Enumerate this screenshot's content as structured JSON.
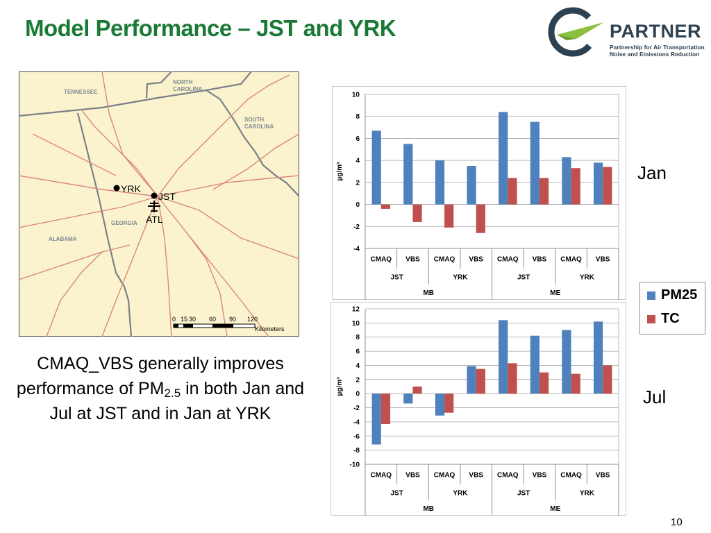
{
  "slide": {
    "title": "Model Performance – JST and YRK",
    "page_number": "10"
  },
  "logo": {
    "name": "PARTNER",
    "tagline_1": "Partnership for Air Transportation",
    "tagline_2": "Noise and Emissions Reduction"
  },
  "map": {
    "labels": {
      "tennessee": "TENNESSEE",
      "north_carolina_1": "NORTH",
      "north_carolina_2": "CAROLINA",
      "south_carolina_1": "SOUTH",
      "south_carolina_2": "CAROLINA",
      "georgia": "GEORGIA",
      "alabama": "ALABAMA",
      "yrk": "YRK",
      "jst": "JST",
      "atl": "ATL"
    },
    "scale": {
      "ticks": [
        "0",
        "15",
        "30",
        "60",
        "90",
        "120"
      ],
      "unit": "Kilometers"
    }
  },
  "summary": {
    "text_before": "CMAQ_VBS generally improves performance of PM",
    "subscript": "2.5",
    "text_after": " in both Jan and Jul at JST and in Jan at YRK"
  },
  "side_labels": {
    "jan": "Jan",
    "jul": "Jul"
  },
  "legend": [
    {
      "name": "PM25",
      "color": "#4f81bd"
    },
    {
      "name": "TC",
      "color": "#c0504d"
    }
  ],
  "colors": {
    "pm25": "#4f81bd",
    "tc": "#c0504d",
    "title": "#1a7a35"
  },
  "chart_data": [
    {
      "type": "bar",
      "panel": "Jan",
      "ylabel": "µg/m³",
      "ylim": [
        -4,
        10
      ],
      "yticks": [
        -4,
        -2,
        0,
        2,
        4,
        6,
        8,
        10
      ],
      "categories": [
        "CMAQ",
        "VBS",
        "CMAQ",
        "VBS",
        "CMAQ",
        "VBS",
        "CMAQ",
        "VBS"
      ],
      "groups_level2": [
        "JST",
        "YRK",
        "JST",
        "YRK"
      ],
      "groups_level3": [
        "MB",
        "ME"
      ],
      "series": [
        {
          "name": "PM25",
          "values": [
            6.7,
            5.5,
            4.0,
            3.5,
            8.4,
            7.5,
            4.3,
            3.8
          ]
        },
        {
          "name": "TC",
          "values": [
            -0.4,
            -1.6,
            -2.1,
            -2.6,
            2.4,
            2.4,
            3.3,
            3.4
          ]
        }
      ]
    },
    {
      "type": "bar",
      "panel": "Jul",
      "ylabel": "µg/m³",
      "ylim": [
        -10,
        12
      ],
      "yticks": [
        -10,
        -8,
        -6,
        -4,
        -2,
        0,
        2,
        4,
        6,
        8,
        10,
        12
      ],
      "categories": [
        "CMAQ",
        "VBS",
        "CMAQ",
        "VBS",
        "CMAQ",
        "VBS",
        "CMAQ",
        "VBS"
      ],
      "groups_level2": [
        "JST",
        "YRK",
        "JST",
        "YRK"
      ],
      "groups_level3": [
        "MB",
        "ME"
      ],
      "series": [
        {
          "name": "PM25",
          "values": [
            -7.2,
            -1.4,
            -3.1,
            3.9,
            10.4,
            8.2,
            9.0,
            10.2
          ]
        },
        {
          "name": "TC",
          "values": [
            -4.3,
            1.0,
            -2.7,
            3.5,
            4.3,
            3.0,
            2.8,
            4.0
          ]
        }
      ]
    }
  ]
}
